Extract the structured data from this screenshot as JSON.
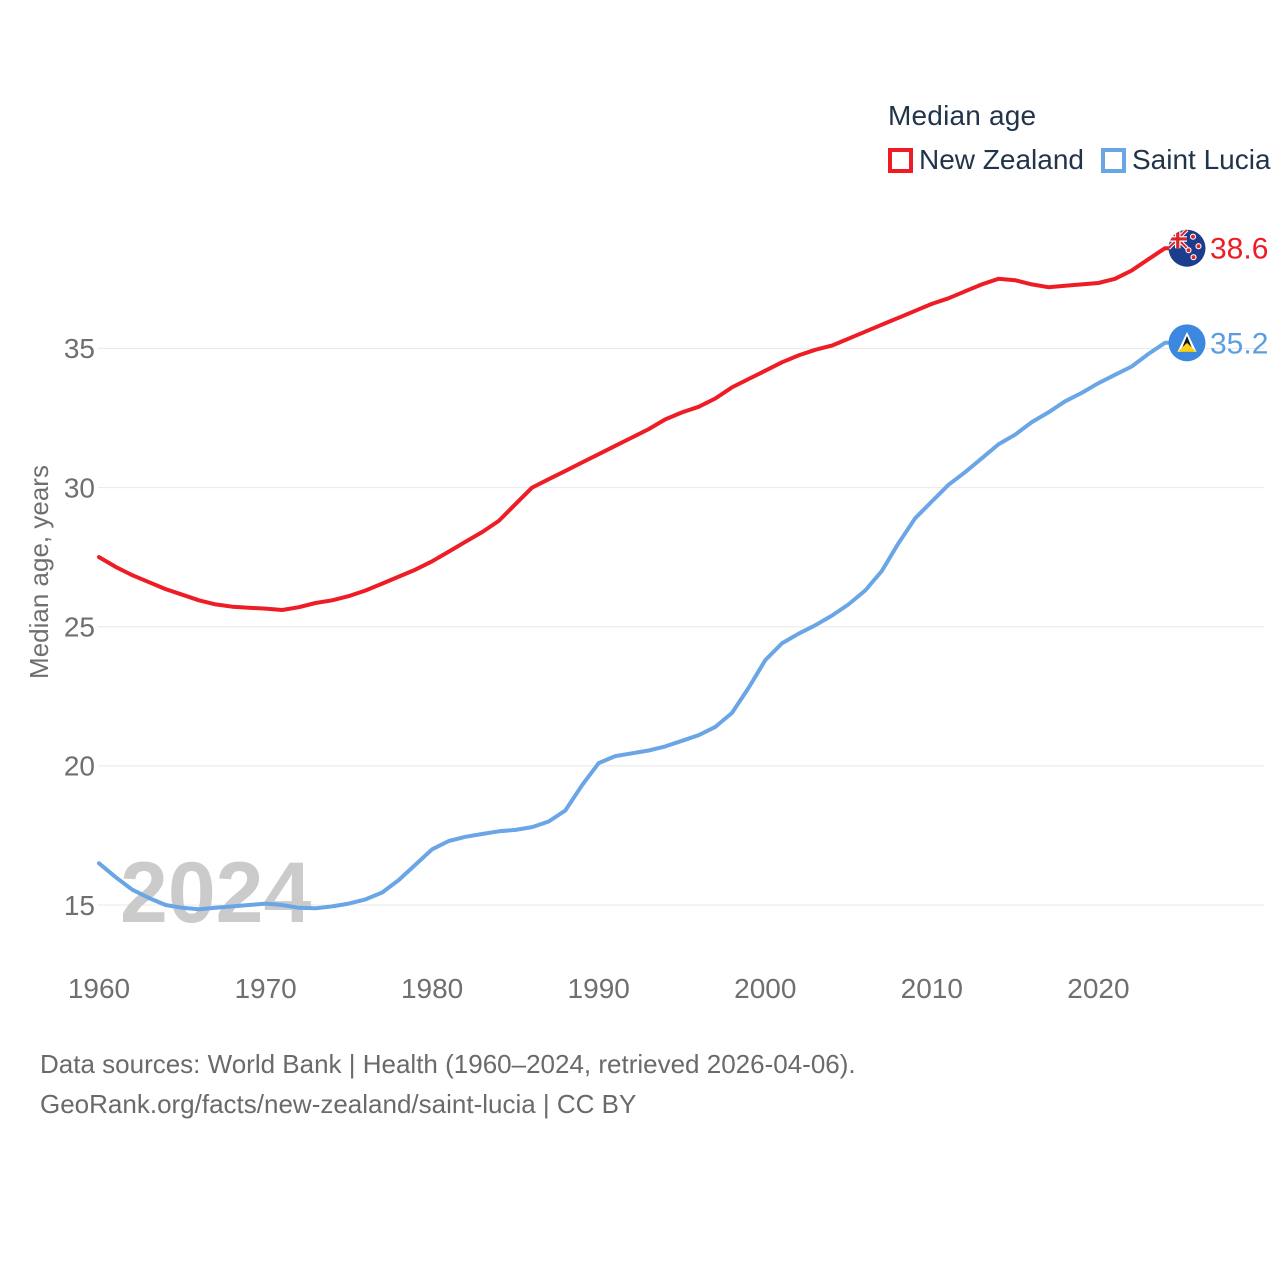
{
  "legend": {
    "title": "Median age",
    "items": [
      {
        "label": "New Zealand",
        "color": "#ee1c24"
      },
      {
        "label": "Saint Lucia",
        "color": "#6aa5e6"
      }
    ]
  },
  "chart_data": {
    "type": "line",
    "title": "Median age",
    "ylabel": "Median age, years",
    "xlabel": "",
    "x_start": 1960,
    "x_end": 2024,
    "x_ticks": [
      1960,
      1970,
      1980,
      1990,
      2000,
      2010,
      2020
    ],
    "y_ticks": [
      15,
      20,
      25,
      30,
      35
    ],
    "ylim": [
      13.5,
      40
    ],
    "grid": true,
    "legend_position": "top-right",
    "watermark": "2024",
    "grid_color": "#e8e8e8",
    "tick_color": "#6f6f6f",
    "watermark_color": "#cbcbcb",
    "series": [
      {
        "name": "New Zealand",
        "color": "#ee1c24",
        "label_color": "#ee1c24",
        "end_label": "38.6",
        "values": [
          27.5,
          27.15,
          26.85,
          26.6,
          26.35,
          26.15,
          25.95,
          25.8,
          25.72,
          25.68,
          25.65,
          25.6,
          25.7,
          25.85,
          25.95,
          26.1,
          26.3,
          26.55,
          26.8,
          27.05,
          27.35,
          27.7,
          28.05,
          28.4,
          28.8,
          29.4,
          30.0,
          30.3,
          30.6,
          30.9,
          31.2,
          31.5,
          31.8,
          32.1,
          32.45,
          32.7,
          32.9,
          33.2,
          33.6,
          33.9,
          34.2,
          34.5,
          34.75,
          34.95,
          35.1,
          35.35,
          35.6,
          35.85,
          36.1,
          36.35,
          36.6,
          36.8,
          37.05,
          37.3,
          37.5,
          37.45,
          37.3,
          37.2,
          37.25,
          37.3,
          37.35,
          37.5,
          37.8,
          38.2,
          38.6
        ]
      },
      {
        "name": "Saint Lucia",
        "color": "#6aa5e6",
        "label_color": "#5c9ce0",
        "end_label": "35.2",
        "values": [
          16.5,
          16.0,
          15.55,
          15.25,
          15.0,
          14.9,
          14.85,
          14.9,
          14.95,
          15.0,
          15.05,
          15.0,
          14.9,
          14.88,
          14.95,
          15.05,
          15.2,
          15.45,
          15.9,
          16.45,
          17.0,
          17.3,
          17.45,
          17.55,
          17.65,
          17.7,
          17.8,
          18.0,
          18.4,
          19.3,
          20.1,
          20.35,
          20.45,
          20.55,
          20.7,
          20.9,
          21.1,
          21.4,
          21.9,
          22.8,
          23.8,
          24.4,
          24.75,
          25.05,
          25.4,
          25.8,
          26.3,
          27.0,
          28.0,
          28.9,
          29.5,
          30.1,
          30.55,
          31.05,
          31.55,
          31.9,
          32.35,
          32.7,
          33.1,
          33.4,
          33.75,
          34.05,
          34.35,
          34.8,
          35.2
        ]
      }
    ],
    "flags": {
      "new_zealand": {
        "circle": "#1c3d8c",
        "jack_red": "#d8232a",
        "star": "#e0222a"
      },
      "saint_lucia": {
        "circle": "#3c87e0",
        "triangle_black": "#15181c",
        "triangle_yellow": "#fcd116"
      }
    }
  },
  "footer": {
    "line1": "Data sources: World Bank | Health (1960–2024, retrieved 2026-04-06).",
    "line2": "GeoRank.org/facts/new-zealand/saint-lucia | CC BY"
  }
}
